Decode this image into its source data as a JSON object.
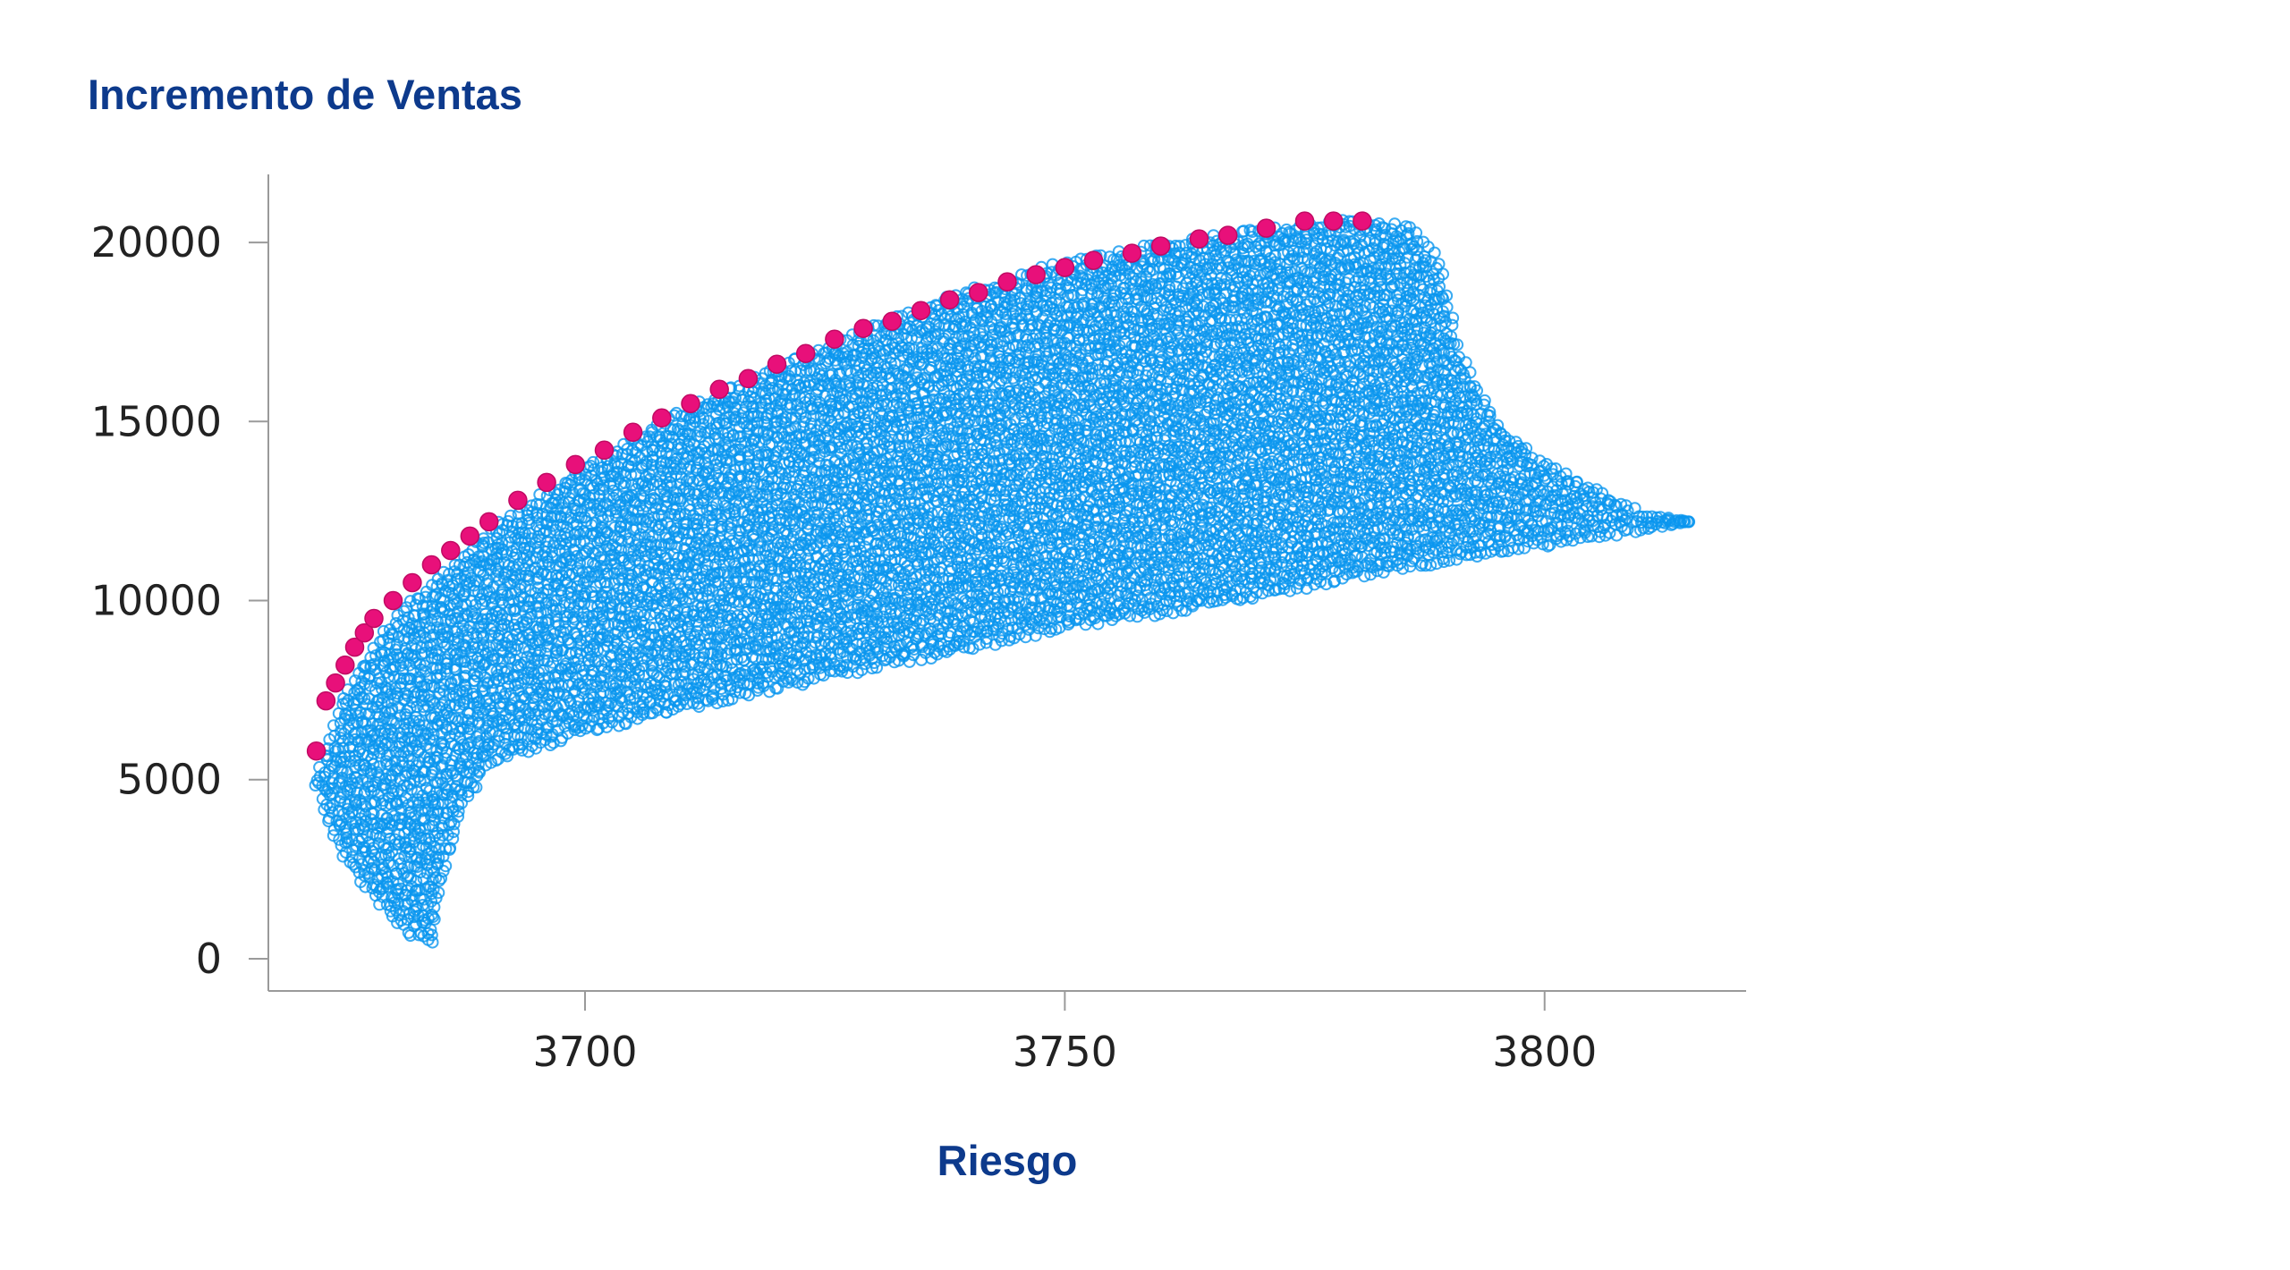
{
  "chart_data": {
    "type": "scatter",
    "title": "Incremento de Ventas",
    "xlabel": "Riesgo",
    "ylabel": "",
    "xlim": [
      3667,
      3821
    ],
    "ylim": [
      -900,
      21900
    ],
    "xticks": [
      3700,
      3750,
      3800
    ],
    "yticks": [
      0,
      5000,
      10000,
      15000,
      20000
    ],
    "grid": false,
    "colors": {
      "title": "#0d3a8c",
      "cloud": "#0a96ef",
      "frontier": "#e8107a",
      "axis": "#9a9a9a"
    },
    "series": [
      {
        "marker": "hollow-circle",
        "color": "#0a96ef",
        "boundary": {
          "upper": [
            [
              3672,
              5000
            ],
            [
              3675,
              7500
            ],
            [
              3680,
              9500
            ],
            [
              3690,
              12000
            ],
            [
              3700,
              13800
            ],
            [
              3710,
              15300
            ],
            [
              3720,
              16600
            ],
            [
              3730,
              17700
            ],
            [
              3740,
              18700
            ],
            [
              3750,
              19500
            ],
            [
              3760,
              20000
            ],
            [
              3770,
              20400
            ],
            [
              3780,
              20700
            ],
            [
              3786,
              20500
            ],
            [
              3789,
              19500
            ],
            [
              3791,
              17000
            ],
            [
              3795,
              15000
            ],
            [
              3800,
              13900
            ],
            [
              3805,
              13200
            ],
            [
              3810,
              12500
            ],
            [
              3815,
              12200
            ]
          ],
          "lower": [
            [
              3672,
              4800
            ],
            [
              3674,
              3200
            ],
            [
              3677,
              2000
            ],
            [
              3680,
              1000
            ],
            [
              3684,
              250
            ],
            [
              3685,
              2000
            ],
            [
              3687,
              4000
            ],
            [
              3690,
              5400
            ],
            [
              3700,
              6300
            ],
            [
              3712,
              7000
            ],
            [
              3725,
              7800
            ],
            [
              3738,
              8500
            ],
            [
              3750,
              9200
            ],
            [
              3765,
              9800
            ],
            [
              3780,
              10600
            ],
            [
              3795,
              11300
            ],
            [
              3805,
              11700
            ],
            [
              3815,
              12200
            ]
          ]
        }
      },
      {
        "name": "",
        "marker": "filled-circle",
        "color": "#e8107a",
        "x": [
          3672,
          3673,
          3674,
          3675,
          3676,
          3677,
          3678,
          3680,
          3682,
          3684,
          3686,
          3688,
          3690,
          3693,
          3696,
          3699,
          3702,
          3705,
          3708,
          3711,
          3714,
          3717,
          3720,
          3723,
          3726,
          3729,
          3732,
          3735,
          3738,
          3741,
          3744,
          3747,
          3750,
          3753,
          3757,
          3760,
          3764,
          3767,
          3771,
          3775,
          3778,
          3781
        ],
        "y": [
          5800,
          7200,
          7700,
          8200,
          8700,
          9100,
          9500,
          10000,
          10500,
          11000,
          11400,
          11800,
          12200,
          12800,
          13300,
          13800,
          14200,
          14700,
          15100,
          15500,
          15900,
          16200,
          16600,
          16900,
          17300,
          17600,
          17800,
          18100,
          18400,
          18600,
          18900,
          19100,
          19300,
          19500,
          19700,
          19900,
          20100,
          20200,
          20400,
          20600,
          20600,
          20600
        ]
      }
    ]
  }
}
